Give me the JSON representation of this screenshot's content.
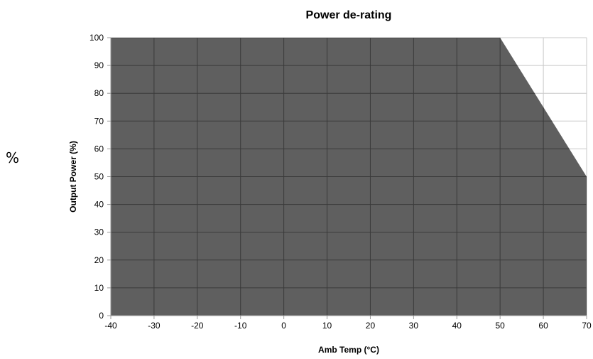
{
  "side_label": "%",
  "chart_data": {
    "type": "area",
    "title": "Power de-rating",
    "xlabel": "Amb Temp (°C)",
    "ylabel": "Output Power (%)",
    "xlim": [
      -40,
      70
    ],
    "ylim": [
      0,
      100
    ],
    "xticks": [
      -40,
      -30,
      -20,
      -10,
      0,
      10,
      20,
      30,
      40,
      50,
      60,
      70
    ],
    "yticks": [
      0,
      10,
      20,
      30,
      40,
      50,
      60,
      70,
      80,
      90,
      100
    ],
    "grid": true,
    "legend": "none",
    "x": [
      -40,
      50,
      70
    ],
    "y": [
      100,
      100,
      50
    ],
    "fill_color": "#5f5f5f",
    "grid_color": "#c8c8c8",
    "grid_over_fill_color": "#3a3a3a",
    "axis_color": "#9a9a9a"
  }
}
